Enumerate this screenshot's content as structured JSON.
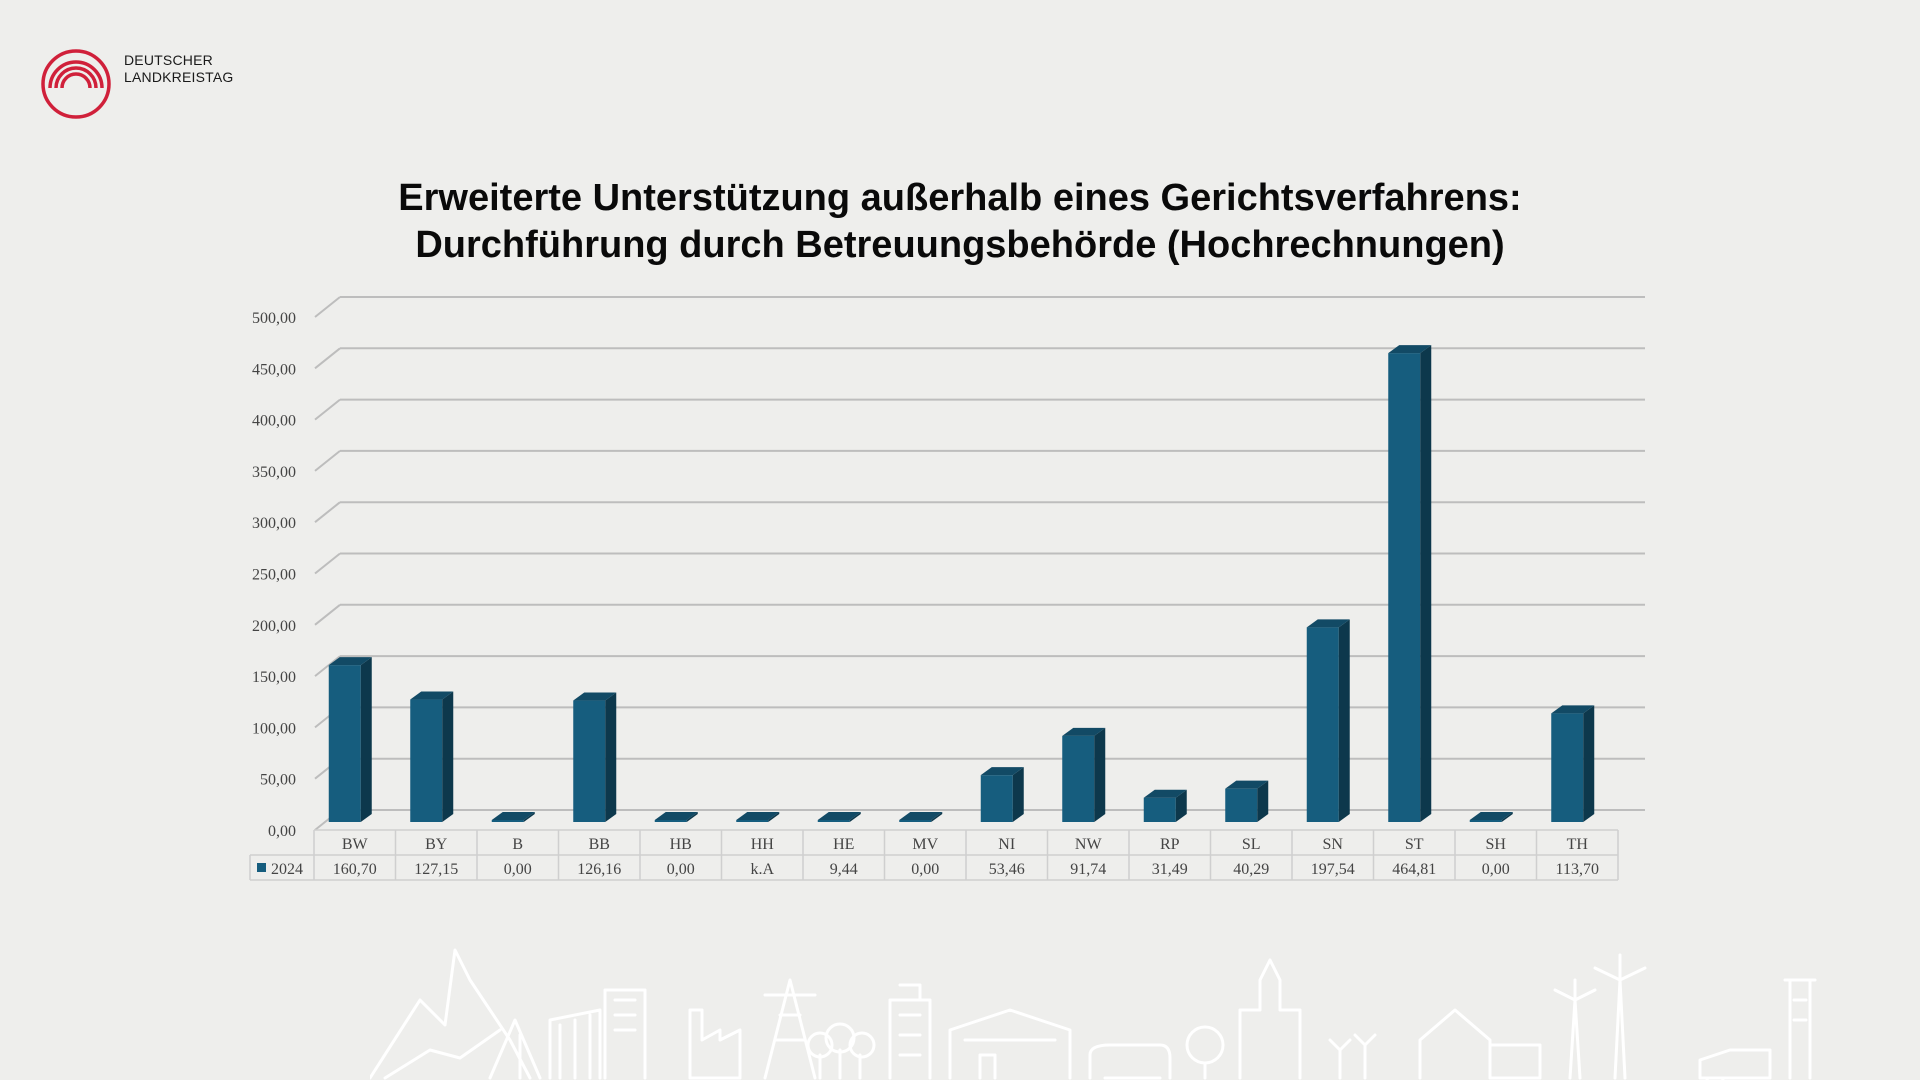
{
  "logo": {
    "line1": "DEUTSCHER",
    "line2": "LANDKREISTAG",
    "color": "#d0203a"
  },
  "chart_data": {
    "type": "bar",
    "title": [
      "Erweiterte Unterstützung außerhalb eines Gerichtsverfahrens:",
      "Durchführung durch Betreuungsbehörde (Hochrechnungen)"
    ],
    "categories": [
      "BW",
      "BY",
      "B",
      "BB",
      "HB",
      "HH",
      "HE",
      "MV",
      "NI",
      "NW",
      "RP",
      "SL",
      "SN",
      "ST",
      "SH",
      "TH"
    ],
    "series": [
      {
        "name": "2024",
        "color": "#165d7e",
        "values": [
          160.7,
          127.15,
          0.0,
          126.16,
          0.0,
          0,
          9.44,
          0.0,
          53.46,
          91.74,
          31.49,
          40.29,
          197.54,
          464.81,
          0.0,
          113.7
        ],
        "labels": [
          "160,70",
          "127,15",
          "0,00",
          "126,16",
          "0,00",
          "k.A",
          "9,44",
          "0,00",
          "53,46",
          "91,74",
          "31,49",
          "40,29",
          "197,54",
          "464,81",
          "0,00",
          "113,70"
        ]
      }
    ],
    "ylim": [
      0,
      500
    ],
    "yticks": [
      "0,00",
      "50,00",
      "100,00",
      "150,00",
      "200,00",
      "250,00",
      "300,00",
      "350,00",
      "400,00",
      "450,00",
      "500,00"
    ],
    "grid": true,
    "data_table": true
  }
}
